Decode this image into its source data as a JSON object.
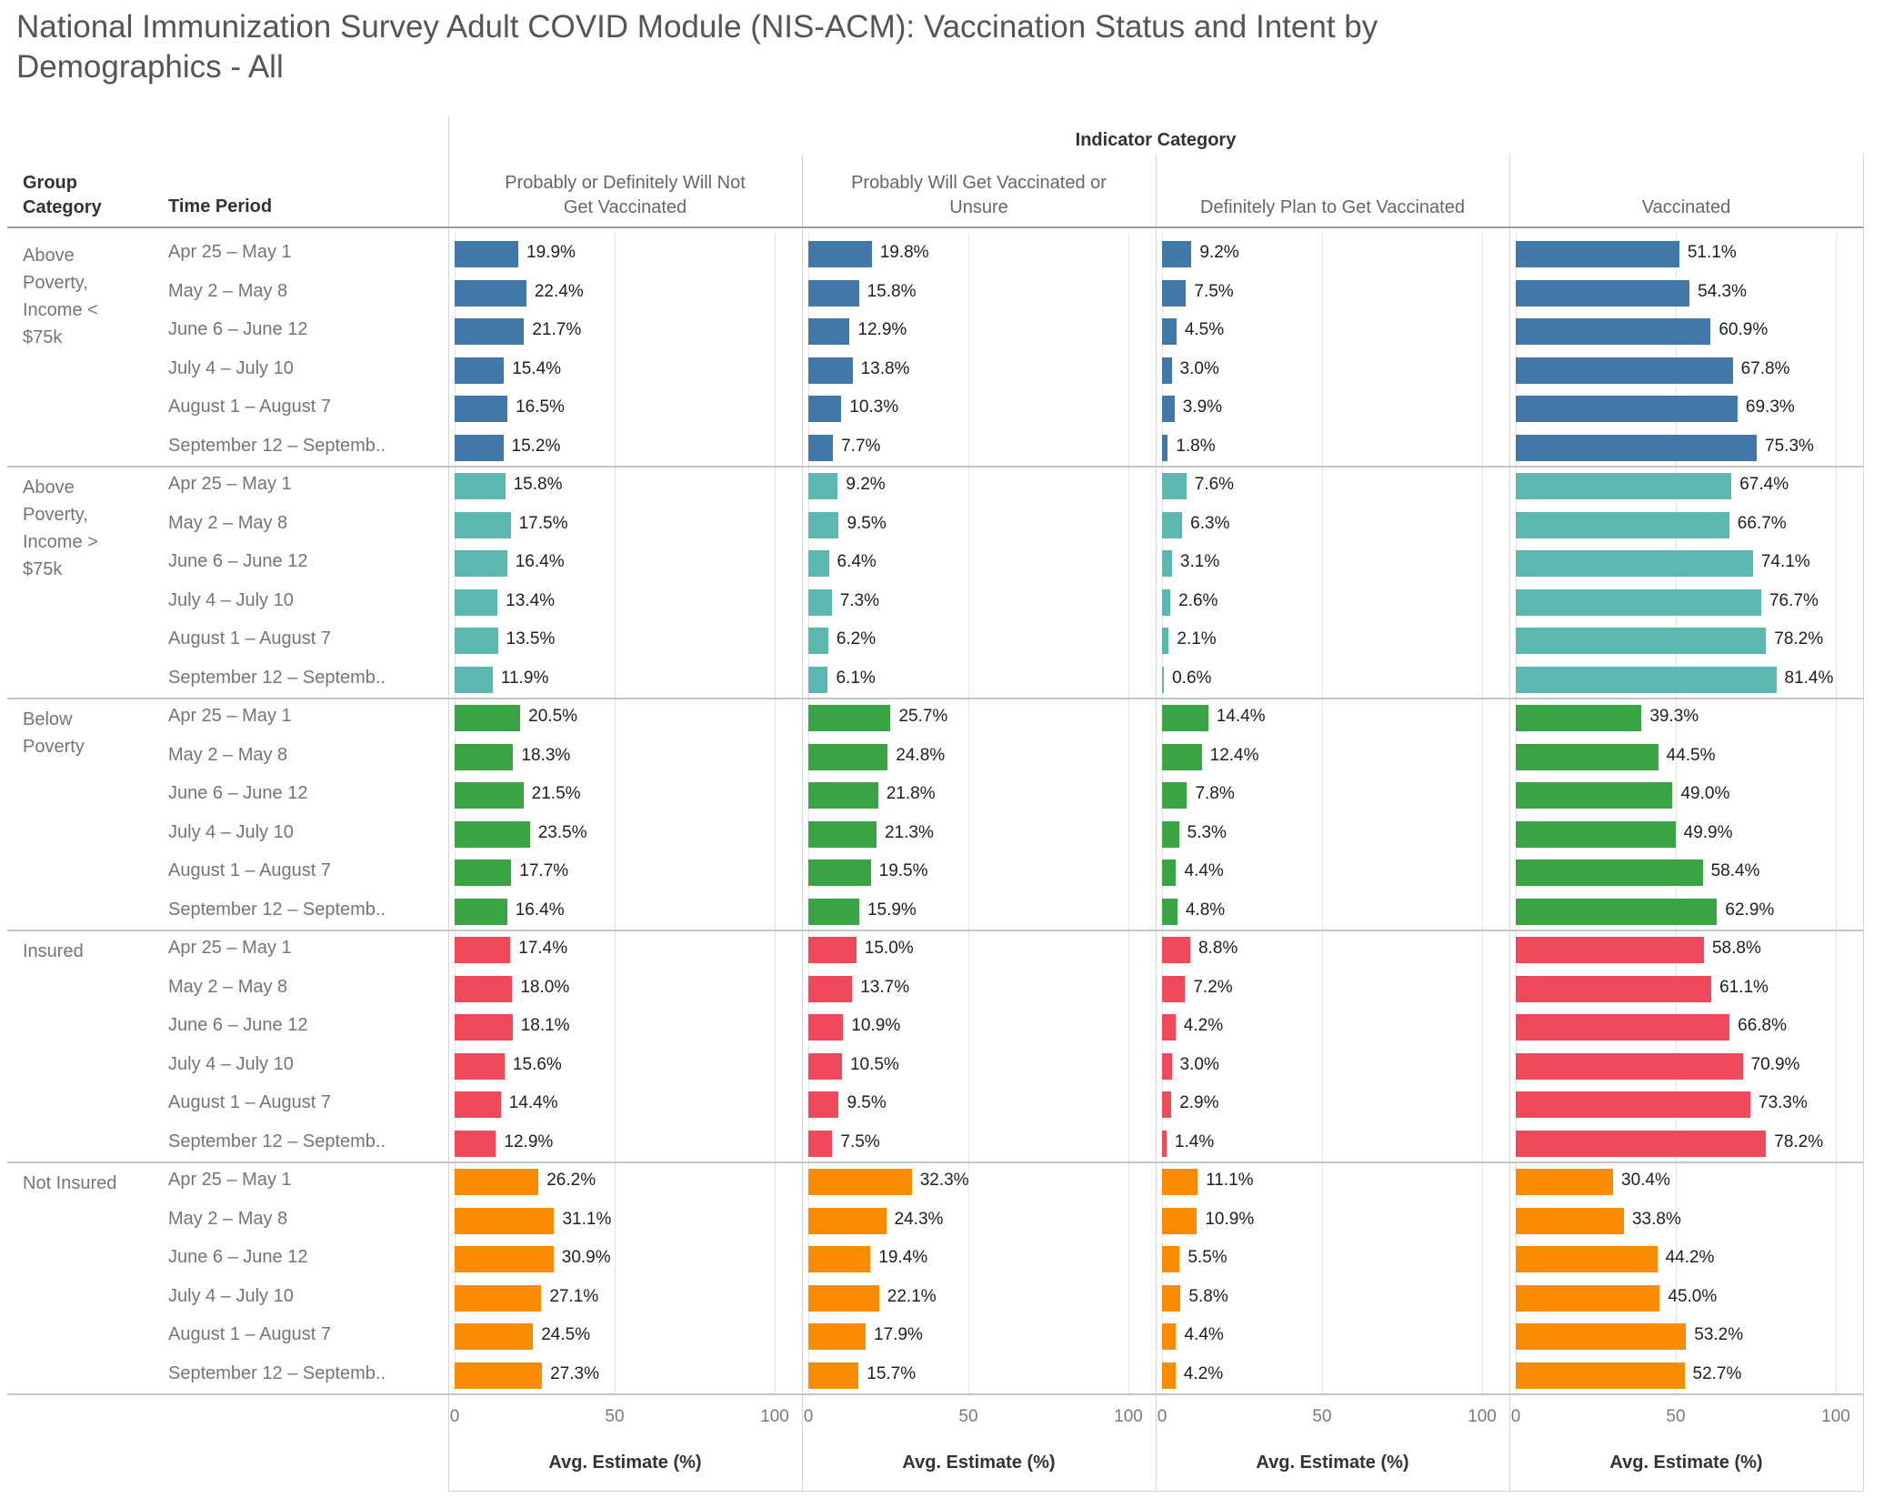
{
  "title": "National Immunization Survey Adult COVID Module (NIS-ACM): Vaccination Status and Intent by Demographics - All",
  "header": {
    "indicator_category": "Indicator Category",
    "group_category": "Group\nCategory",
    "time_period": "Time Period"
  },
  "axis": {
    "label": "Avg. Estimate (%)",
    "ticks": [
      0,
      50,
      100
    ]
  },
  "chart_data": {
    "type": "bar",
    "orientation": "horizontal",
    "value_unit": "%",
    "axis_range": [
      0,
      100
    ],
    "axis_label": "Avg. Estimate (%)",
    "grid": true,
    "panels": [
      {
        "label": "Probably or Definitely Will Not\nGet Vaccinated"
      },
      {
        "label": "Probably Will Get Vaccinated or\nUnsure"
      },
      {
        "label": "Definitely Plan to Get Vaccinated"
      },
      {
        "label": "Vaccinated"
      }
    ],
    "time_periods": [
      "Apr 25 – May 1",
      "May 2 – May 8",
      "June 6 – June 12",
      "July 4 – July 10",
      "August 1 –  August 7",
      "September 12  – Septemb.."
    ],
    "groups": [
      {
        "name": "Above Poverty, Income < $75k",
        "label_lines": "Above\nPoverty,\nIncome <\n$75k",
        "color": "#4278a9",
        "series": [
          [
            19.9,
            22.4,
            21.7,
            15.4,
            16.5,
            15.2
          ],
          [
            19.8,
            15.8,
            12.9,
            13.8,
            10.3,
            7.7
          ],
          [
            9.2,
            7.5,
            4.5,
            3.0,
            3.9,
            1.8
          ],
          [
            51.1,
            54.3,
            60.9,
            67.8,
            69.3,
            75.3
          ]
        ]
      },
      {
        "name": "Above Poverty, Income > $75k",
        "label_lines": "Above\nPoverty,\nIncome >\n$75k",
        "color": "#5bb8b1",
        "series": [
          [
            15.8,
            17.5,
            16.4,
            13.4,
            13.5,
            11.9
          ],
          [
            9.2,
            9.5,
            6.4,
            7.3,
            6.2,
            6.1
          ],
          [
            7.6,
            6.3,
            3.1,
            2.6,
            2.1,
            0.6
          ],
          [
            67.4,
            66.7,
            74.1,
            76.7,
            78.2,
            81.4
          ]
        ]
      },
      {
        "name": "Below Poverty",
        "label_lines": "Below\nPoverty",
        "color": "#3aa344",
        "series": [
          [
            20.5,
            18.3,
            21.5,
            23.5,
            17.7,
            16.4
          ],
          [
            25.7,
            24.8,
            21.8,
            21.3,
            19.5,
            15.9
          ],
          [
            14.4,
            12.4,
            7.8,
            5.3,
            4.4,
            4.8
          ],
          [
            39.3,
            44.5,
            49.0,
            49.9,
            58.4,
            62.9
          ]
        ]
      },
      {
        "name": "Insured",
        "label_lines": "Insured",
        "color": "#f04a5a",
        "series": [
          [
            17.4,
            18.0,
            18.1,
            15.6,
            14.4,
            12.9
          ],
          [
            15.0,
            13.7,
            10.9,
            10.5,
            9.5,
            7.5
          ],
          [
            8.8,
            7.2,
            4.2,
            3.0,
            2.9,
            1.4
          ],
          [
            58.8,
            61.1,
            66.8,
            70.9,
            73.3,
            78.2
          ]
        ]
      },
      {
        "name": "Not Insured",
        "label_lines": "Not Insured",
        "color": "#fb8b00",
        "series": [
          [
            26.2,
            31.1,
            30.9,
            27.1,
            24.5,
            27.3
          ],
          [
            32.3,
            24.3,
            19.4,
            22.1,
            17.9,
            15.7
          ],
          [
            11.1,
            10.9,
            5.5,
            5.8,
            4.4,
            4.2
          ],
          [
            30.4,
            33.8,
            44.2,
            45.0,
            53.2,
            52.7
          ]
        ]
      }
    ]
  }
}
